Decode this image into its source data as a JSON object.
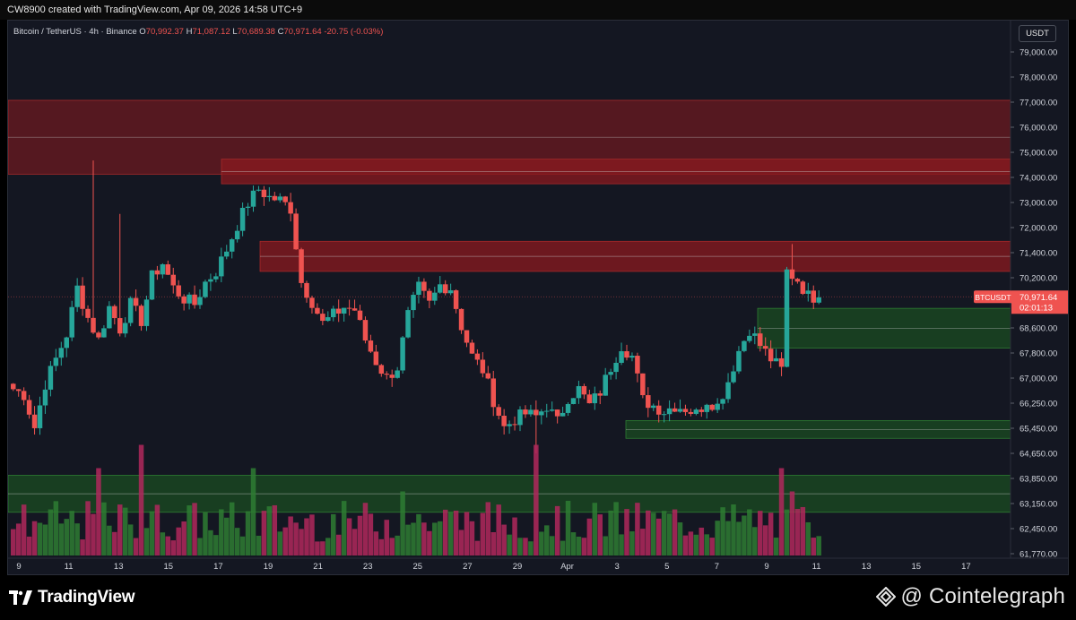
{
  "header": {
    "attribution": "CW8900 created with TradingView.com, Apr 09, 2026 14:58 UTC+9"
  },
  "legend": {
    "symbol": "Bitcoin / TetherUS · 4h · Binance",
    "o_label": "O",
    "o": "70,992.37",
    "h_label": "H",
    "h": "71,087.12",
    "l_label": "L",
    "l": "70,689.38",
    "c_label": "C",
    "c": "70,971.64",
    "change": "-20.75 (-0.03%)"
  },
  "currency": "USDT",
  "price_tag": {
    "symbol": "BTCUSDT",
    "price": "70,971.64",
    "countdown": "02:01:13"
  },
  "footer": {
    "tv_logo": "TradingView",
    "source": "@ Cointelegraph"
  },
  "colors": {
    "bull": "#26a69a",
    "bear": "#ef5350",
    "vol_bull": "#2e7d32",
    "vol_bear": "#b0285c",
    "supply_zone": "#8b1a1f",
    "demand_zone": "#1b5e20",
    "background": "#141722"
  },
  "icons": {
    "tv": "tradingview-logo-icon",
    "ct": "cointelegraph-diamond-icon"
  },
  "chart_data": {
    "type": "candlestick",
    "title": "",
    "price_axis": {
      "labels": [
        "79,000.00",
        "78,000.00",
        "77,000.00",
        "76,000.00",
        "75,000.00",
        "74,000.00",
        "73,000.00",
        "72,000.00",
        "71,400.00",
        "70,200.00",
        "69,400.00",
        "68,600.00",
        "67,800.00",
        "67,000.00",
        "66,250.00",
        "65,450.00",
        "64,650.00",
        "63,850.00",
        "63,150.00",
        "62,450.00",
        "61,770.00"
      ]
    },
    "time_axis": {
      "labels": [
        "9",
        "11",
        "13",
        "15",
        "17",
        "19",
        "21",
        "23",
        "25",
        "27",
        "29",
        "Apr",
        "3",
        "5",
        "7",
        "9",
        "11",
        "13",
        "15",
        "17"
      ]
    },
    "zones": [
      {
        "name": "supply-zone-upper",
        "type": "supply",
        "from": 75450,
        "to": 78150
      },
      {
        "name": "supply-zone-inner",
        "type": "supply",
        "from": 75100,
        "to": 76000
      },
      {
        "name": "supply-zone-mid",
        "type": "supply",
        "from": 71900,
        "to": 73000
      },
      {
        "name": "demand-zone-current",
        "type": "demand",
        "from": 69100,
        "to": 70550
      },
      {
        "name": "demand-zone-lower",
        "type": "demand",
        "from": 65800,
        "to": 66450
      },
      {
        "name": "demand-zone-volume",
        "type": "demand",
        "from": 63100,
        "to": 64450
      }
    ],
    "path": [
      [
        0,
        67600
      ],
      [
        2,
        67400
      ],
      [
        4,
        66200
      ],
      [
        6,
        67800
      ],
      [
        8,
        68700
      ],
      [
        10,
        69600
      ],
      [
        12,
        71300
      ],
      [
        14,
        70200
      ],
      [
        16,
        69400
      ],
      [
        18,
        70600
      ],
      [
        20,
        69800
      ],
      [
        22,
        70700
      ],
      [
        24,
        70100
      ],
      [
        26,
        71700
      ],
      [
        28,
        72200
      ],
      [
        30,
        71300
      ],
      [
        32,
        70900
      ],
      [
        34,
        70700
      ],
      [
        36,
        71500
      ],
      [
        38,
        71900
      ],
      [
        40,
        72700
      ],
      [
        42,
        73600
      ],
      [
        44,
        74400
      ],
      [
        46,
        74900
      ],
      [
        48,
        74600
      ],
      [
        50,
        74500
      ],
      [
        52,
        74200
      ],
      [
        54,
        71500
      ],
      [
        56,
        70800
      ],
      [
        58,
        70000
      ],
      [
        60,
        70300
      ],
      [
        62,
        70600
      ],
      [
        64,
        70500
      ],
      [
        66,
        69400
      ],
      [
        68,
        68600
      ],
      [
        70,
        68000
      ],
      [
        72,
        68400
      ],
      [
        74,
        70300
      ],
      [
        76,
        71300
      ],
      [
        78,
        70700
      ],
      [
        80,
        71400
      ],
      [
        82,
        71300
      ],
      [
        84,
        69900
      ],
      [
        86,
        68800
      ],
      [
        88,
        68300
      ],
      [
        90,
        67200
      ],
      [
        92,
        66200
      ],
      [
        94,
        66500
      ],
      [
        96,
        66700
      ],
      [
        98,
        66600
      ],
      [
        100,
        67000
      ],
      [
        102,
        66400
      ],
      [
        104,
        67300
      ],
      [
        106,
        67600
      ],
      [
        108,
        67000
      ],
      [
        110,
        67500
      ],
      [
        112,
        68400
      ],
      [
        114,
        69200
      ],
      [
        116,
        68800
      ],
      [
        118,
        67200
      ],
      [
        120,
        67000
      ],
      [
        122,
        66800
      ],
      [
        124,
        67000
      ],
      [
        126,
        66900
      ],
      [
        128,
        66700
      ],
      [
        130,
        67200
      ],
      [
        132,
        67000
      ],
      [
        134,
        67900
      ],
      [
        136,
        69000
      ],
      [
        138,
        69800
      ],
      [
        140,
        69200
      ],
      [
        142,
        68700
      ],
      [
        144,
        68300
      ],
      [
        145,
        71900
      ],
      [
        147,
        71600
      ],
      [
        149,
        71000
      ],
      [
        151,
        70950
      ]
    ],
    "volume_scale": {
      "unit": "relative",
      "max": 1
    }
  }
}
